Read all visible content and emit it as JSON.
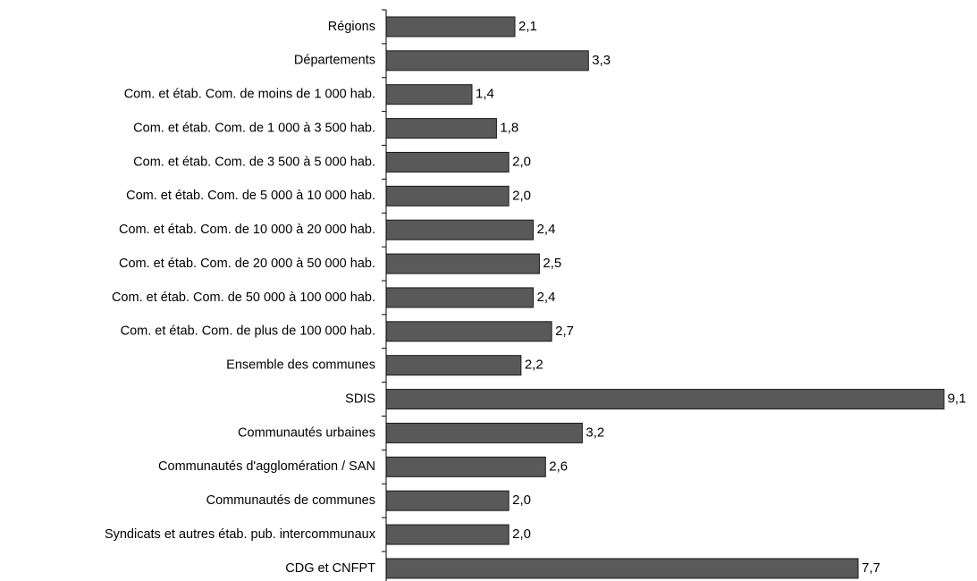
{
  "chart_data": {
    "type": "barh",
    "categories": [
      "Régions",
      "Départements",
      "Com. et étab. Com. de moins de 1 000 hab.",
      "Com. et étab. Com. de 1 000 à 3 500 hab.",
      "Com. et étab. Com. de 3 500 à 5 000 hab.",
      "Com. et étab. Com. de 5 000 à 10 000 hab.",
      "Com. et étab. Com. de 10 000 à 20 000 hab.",
      "Com. et étab. Com. de 20 000 à 50 000 hab.",
      "Com. et étab. Com. de 50 000 à 100 000 hab.",
      "Com. et étab. Com. de plus de 100 000 hab.",
      "Ensemble des communes",
      "SDIS",
      "Communautés urbaines",
      "Communautés d'agglomération / SAN",
      "Communautés de communes",
      "Syndicats et autres étab. pub. intercommunaux",
      "CDG et CNFPT"
    ],
    "values": [
      2.1,
      3.3,
      1.4,
      1.8,
      2.0,
      2.0,
      2.4,
      2.5,
      2.4,
      2.7,
      2.2,
      9.1,
      3.2,
      2.6,
      2.0,
      2.0,
      7.7
    ],
    "value_labels": [
      "2,1",
      "3,3",
      "1,4",
      "1,8",
      "2,0",
      "2,0",
      "2,4",
      "2,5",
      "2,4",
      "2,7",
      "2,2",
      "9,1",
      "3,2",
      "2,6",
      "2,0",
      "2,0",
      "7,7"
    ],
    "color": "#595959"
  }
}
